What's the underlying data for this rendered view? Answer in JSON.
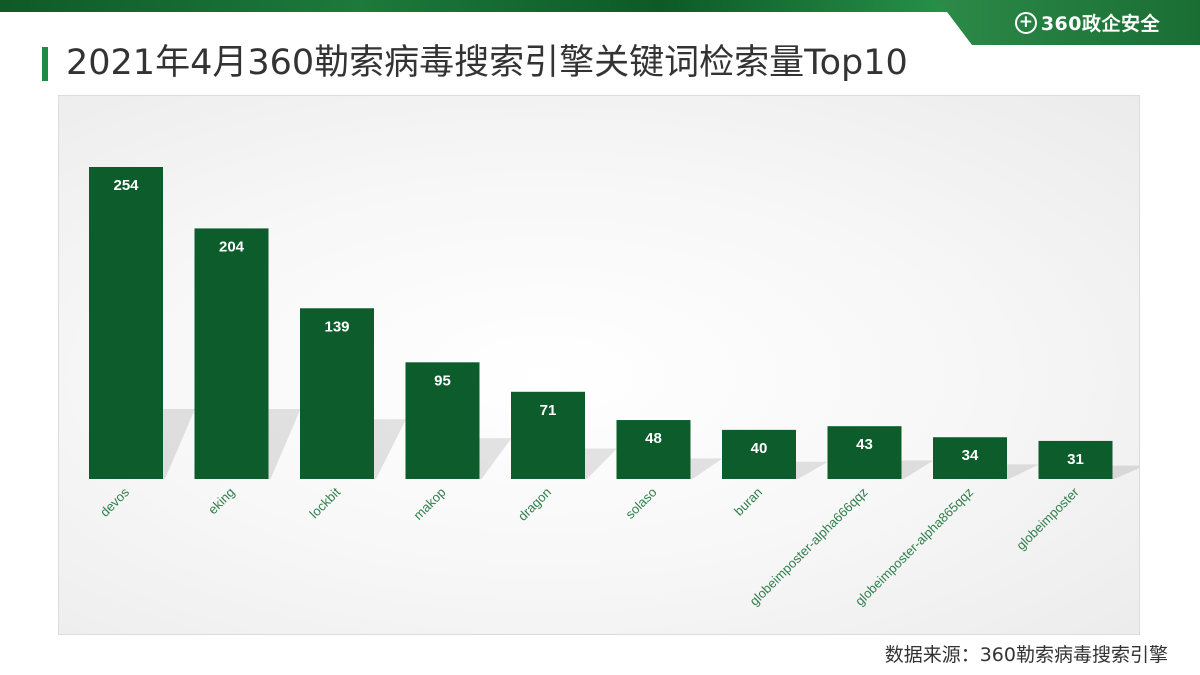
{
  "brand": {
    "logo_glyph": "+",
    "name": "360政企安全"
  },
  "page": {
    "title": "2021年4月360勒索病毒搜索引擎关键词检索量Top10",
    "source": "数据来源：360勒索病毒搜索引擎"
  },
  "colors": {
    "bar": "#0d5c2c",
    "category_label": "#2e7d4a",
    "value_label": "#ffffff",
    "accent": "#1e8a44"
  },
  "chart_data": {
    "type": "bar",
    "title": "",
    "xlabel": "",
    "ylabel": "",
    "ylim": [
      0,
      254
    ],
    "grid": false,
    "legend": "none",
    "categories": [
      "devos",
      "eking",
      "lockbit",
      "makop",
      "dragon",
      "solaso",
      "buran",
      "globeimposter-alpha666qqz",
      "globeimposter-alpha865qqz",
      "globeimposter"
    ],
    "values": [
      254,
      204,
      139,
      95,
      71,
      48,
      40,
      43,
      34,
      31
    ]
  }
}
